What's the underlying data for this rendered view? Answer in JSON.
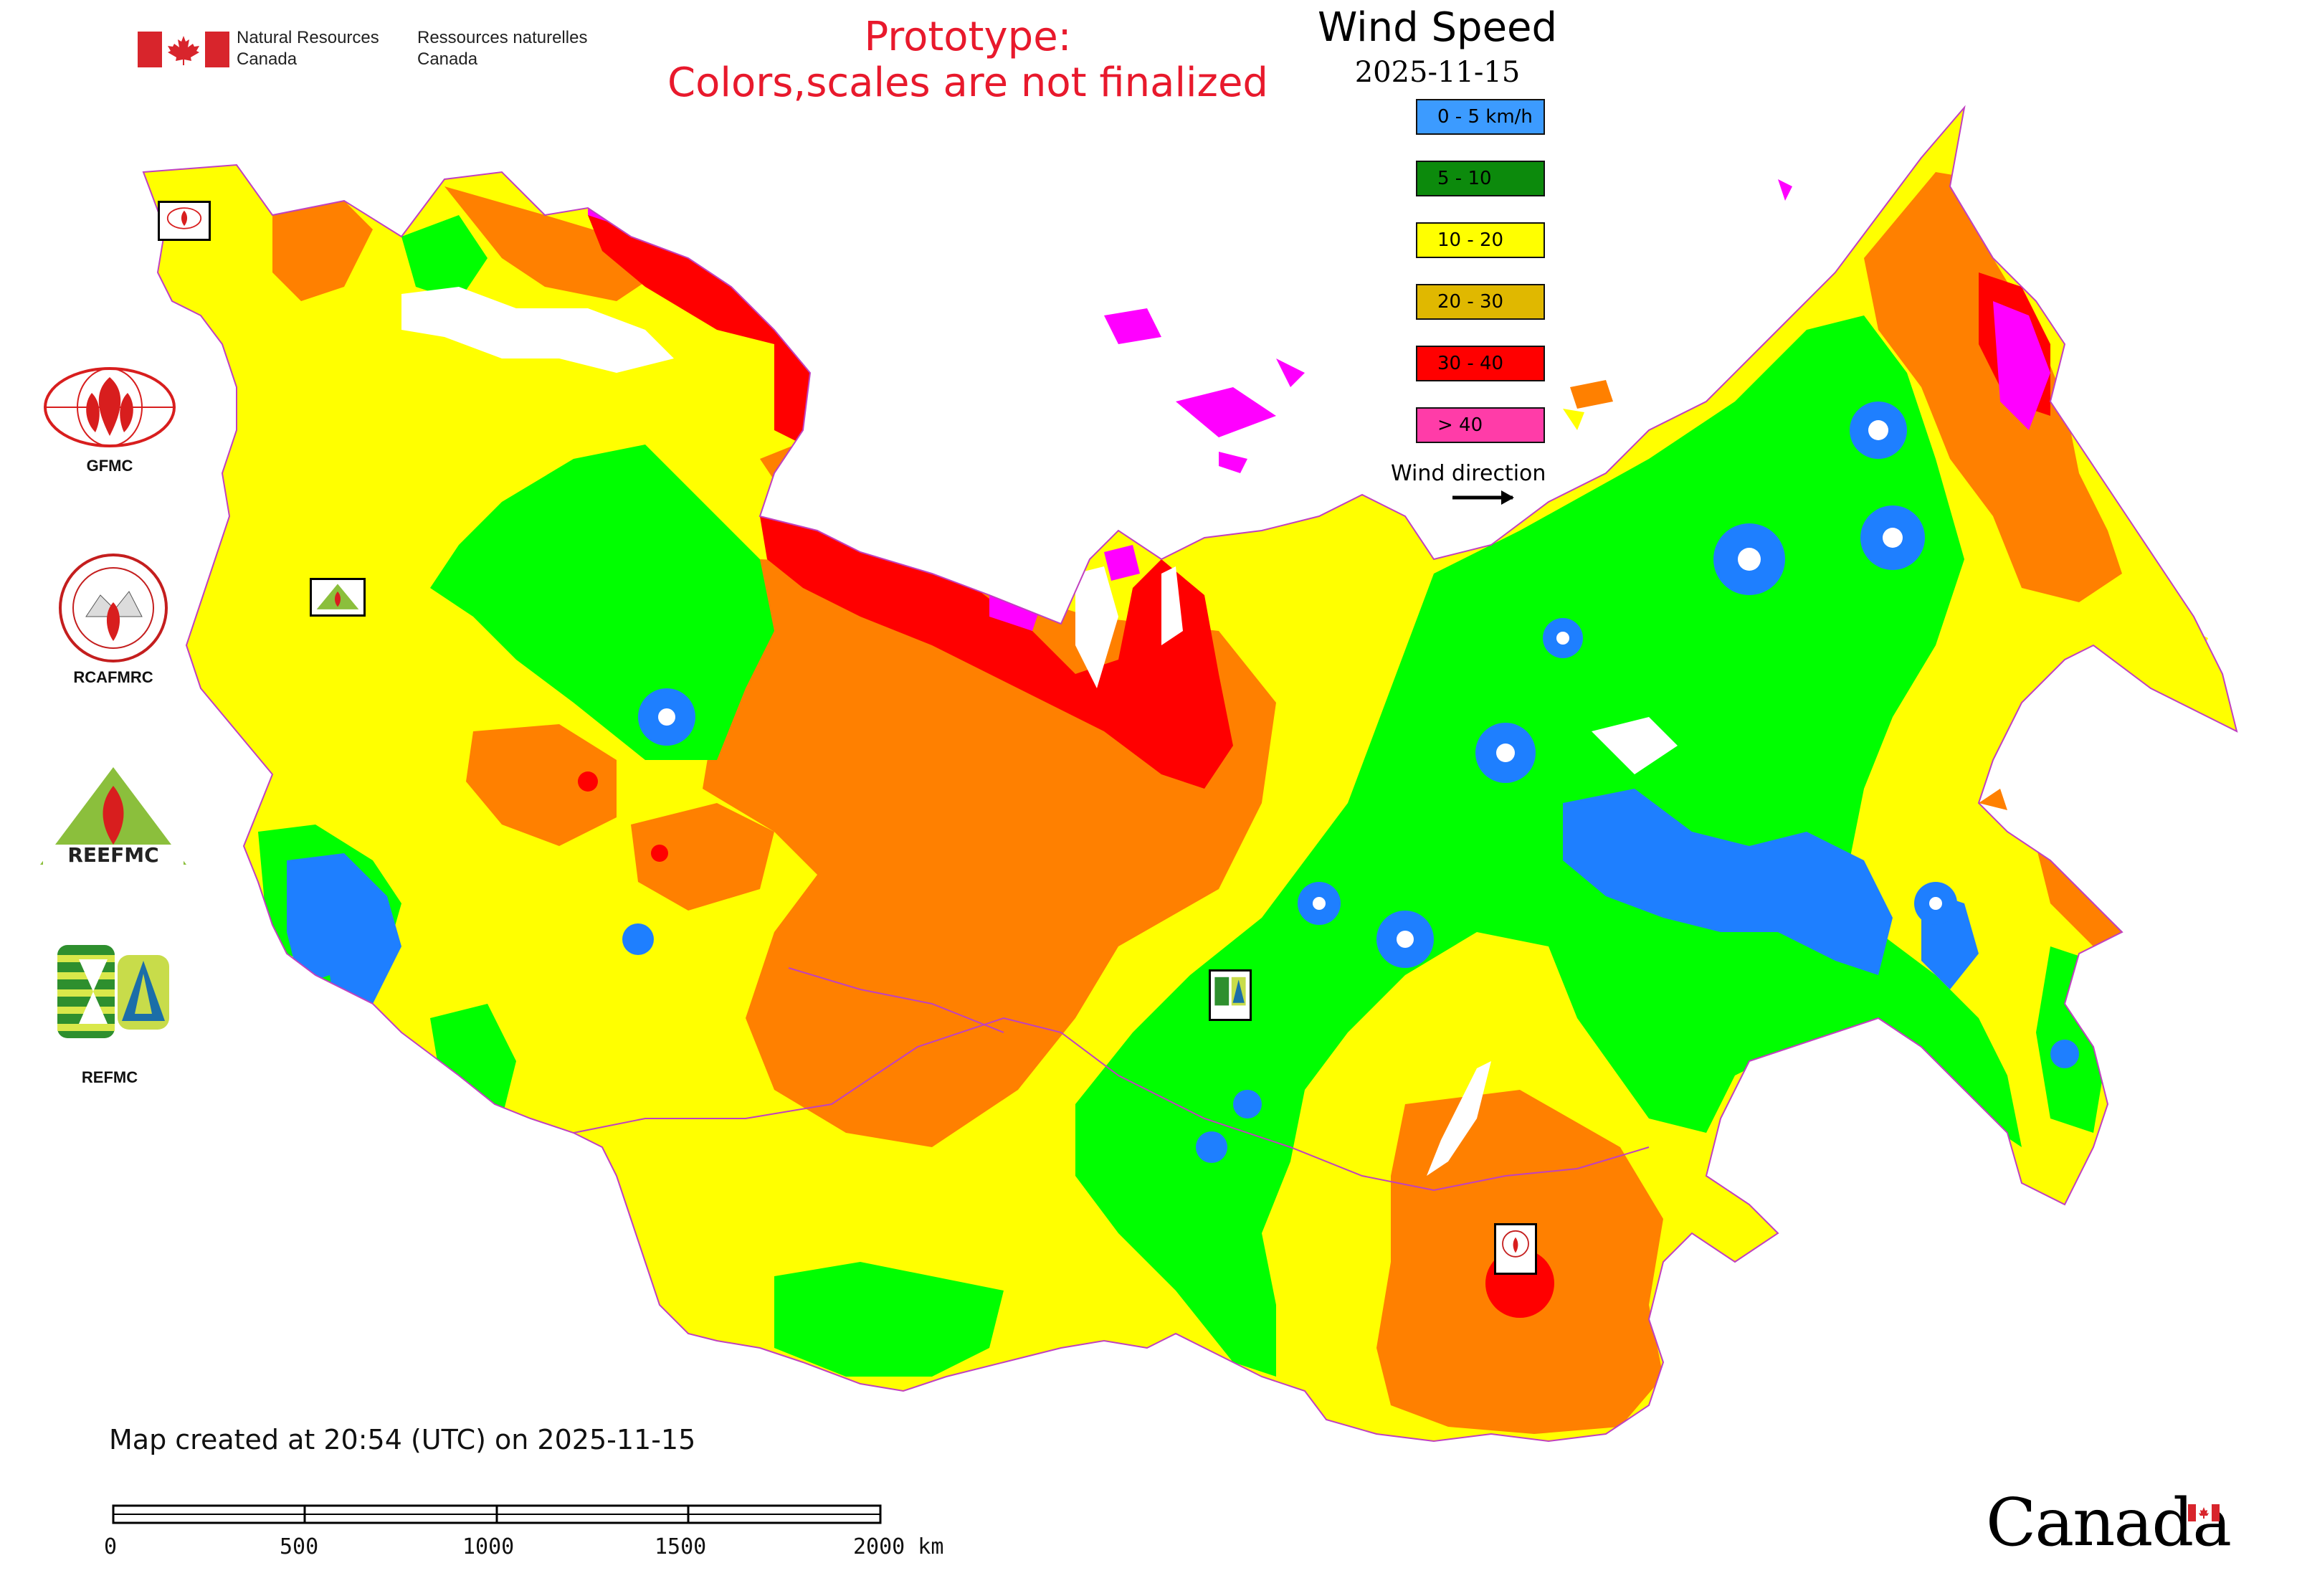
{
  "header": {
    "gov_en_line1": "Natural Resources",
    "gov_en_line2": "Canada",
    "gov_fr_line1": "Ressources naturelles",
    "gov_fr_line2": "Canada",
    "prototype_line1": "Prototype:",
    "prototype_line2": "Colors,scales are not finalized",
    "flag_color": "#d8252c"
  },
  "legend": {
    "title": "Wind Speed",
    "date": "2025-11-15",
    "classes": [
      {
        "label": "0 - 5 km/h",
        "color": "#1e90ff"
      },
      {
        "label": "5 - 10",
        "color": "#008000"
      },
      {
        "label": "10 - 20",
        "color": "#ffff00"
      },
      {
        "label": "20 - 30",
        "color": "#e0b800"
      },
      {
        "label": "30 - 40",
        "color": "#ff0000"
      },
      {
        "label": "> 40",
        "color": "#ff33aa"
      }
    ],
    "wind_direction_label": "Wind direction"
  },
  "organizations": [
    {
      "id": "gfmc",
      "label": "GFMC"
    },
    {
      "id": "rcafmrc",
      "label": "RCAFMRC"
    },
    {
      "id": "reefmc",
      "label": "REEFMC"
    },
    {
      "id": "refmc",
      "label": "REFMC"
    }
  ],
  "map": {
    "fill_colors": {
      "calm": "#1e7fff",
      "light": "#00ff00",
      "moderate": "#ffff00",
      "strong": "#ff8000",
      "very_strong": "#ff0000",
      "extreme": "#ff00ff",
      "water": "#ffffff",
      "border": "#c040c0"
    }
  },
  "footer": {
    "created": "Map created at 20:54 (UTC) on 2025-11-15",
    "scale_labels": [
      "0",
      "500",
      "1000",
      "1500",
      "2000 km"
    ],
    "wordmark": "Canada"
  }
}
